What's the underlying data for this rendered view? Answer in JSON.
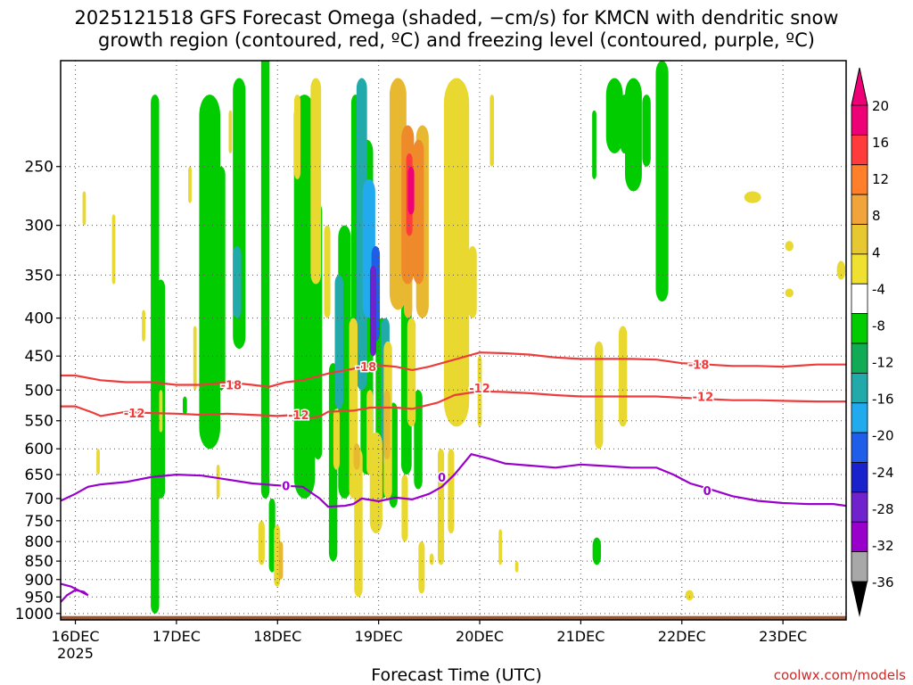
{
  "chart_data": {
    "type": "heatmap",
    "title_line1": "2025121518 GFS Forecast Omega (shaded, −cm/s) for KMCN with dendritic snow",
    "title_line2": "growth region (contoured, red, ºC) and freezing level (contoured, purple, ºC)",
    "xlabel": "Forecast Time (UTC)",
    "credit": "coolwx.com/models",
    "x_unit": "hours since 16DEC 00Z",
    "xlim": [
      -3.5,
      183
    ],
    "x_ticks": [
      {
        "label": "16DEC",
        "x": 0
      },
      {
        "label": "17DEC",
        "x": 24
      },
      {
        "label": "18DEC",
        "x": 48
      },
      {
        "label": "19DEC",
        "x": 72
      },
      {
        "label": "20DEC",
        "x": 96
      },
      {
        "label": "21DEC",
        "x": 120
      },
      {
        "label": "22DEC",
        "x": 144
      },
      {
        "label": "23DEC",
        "x": 168
      }
    ],
    "x_year_label": "2025",
    "y_unit": "hPa",
    "ylim": [
      1020,
      180
    ],
    "y_ticks": [
      250,
      300,
      350,
      400,
      450,
      500,
      550,
      600,
      650,
      700,
      750,
      800,
      850,
      900,
      950,
      1000
    ],
    "colorbar": {
      "ticks": [
        "20",
        "16",
        "12",
        "8",
        "4",
        "-4",
        "-8",
        "-12",
        "-16",
        "-20",
        "-24",
        "-28",
        "-32",
        "-36"
      ],
      "colors": [
        "#ee0077",
        "#ff3b3b",
        "#ff7f2a",
        "#f0a43a",
        "#e8c830",
        "#f0e030",
        "#ffffff",
        "#00cc00",
        "#11aa55",
        "#22aaaa",
        "#22aaee",
        "#1e5ee8",
        "#1a22cc",
        "#7022cc",
        "#9a00cc",
        "#a8a8a8"
      ]
    },
    "omega_patches": [
      {
        "x": 18.9,
        "p1": 200,
        "p2": 1000,
        "w": 2.0,
        "cls": "-8"
      },
      {
        "x": 20.3,
        "p1": 355,
        "p2": 700,
        "w": 2.0,
        "cls": "-8"
      },
      {
        "x": 26.0,
        "p1": 510,
        "p2": 540,
        "w": 1.0,
        "cls": "-8"
      },
      {
        "x": 31.9,
        "p1": 200,
        "p2": 600,
        "w": 5.0,
        "cls": "-8"
      },
      {
        "x": 34.6,
        "p1": 250,
        "p2": 500,
        "w": 2.0,
        "cls": "-8"
      },
      {
        "x": 38.9,
        "p1": 190,
        "p2": 440,
        "w": 3.0,
        "cls": "-8"
      },
      {
        "x": 45.1,
        "p1": 170,
        "p2": 700,
        "w": 2.0,
        "cls": "-8"
      },
      {
        "x": 46.7,
        "p1": 700,
        "p2": 880,
        "w": 1.5,
        "cls": "-8"
      },
      {
        "x": 54.4,
        "p1": 200,
        "p2": 700,
        "w": 5.0,
        "cls": "-8"
      },
      {
        "x": 57.6,
        "p1": 280,
        "p2": 620,
        "w": 2.0,
        "cls": "-8"
      },
      {
        "x": 61.2,
        "p1": 460,
        "p2": 850,
        "w": 2.0,
        "cls": "-8"
      },
      {
        "x": 63.9,
        "p1": 300,
        "p2": 700,
        "w": 3.0,
        "cls": "-8"
      },
      {
        "x": 66.5,
        "p1": 200,
        "p2": 440,
        "w": 2.0,
        "cls": "-8"
      },
      {
        "x": 69.2,
        "p1": 230,
        "p2": 650,
        "w": 3.0,
        "cls": "-8"
      },
      {
        "x": 72.8,
        "p1": 400,
        "p2": 700,
        "w": 3.0,
        "cls": "-8"
      },
      {
        "x": 75.5,
        "p1": 520,
        "p2": 720,
        "w": 2.0,
        "cls": "-8"
      },
      {
        "x": 78.6,
        "p1": 380,
        "p2": 650,
        "w": 2.5,
        "cls": "-8"
      },
      {
        "x": 81.4,
        "p1": 500,
        "p2": 680,
        "w": 2.0,
        "cls": "-8"
      },
      {
        "x": 123.2,
        "p1": 210,
        "p2": 260,
        "w": 1.0,
        "cls": "-8"
      },
      {
        "x": 128.0,
        "p1": 190,
        "p2": 240,
        "w": 4.0,
        "cls": "-8"
      },
      {
        "x": 130.4,
        "p1": 200,
        "p2": 240,
        "w": 2.0,
        "cls": "-8"
      },
      {
        "x": 132.5,
        "p1": 190,
        "p2": 270,
        "w": 4.0,
        "cls": "-8"
      },
      {
        "x": 135.6,
        "p1": 200,
        "p2": 250,
        "w": 2.0,
        "cls": "-8"
      },
      {
        "x": 139.3,
        "p1": 180,
        "p2": 380,
        "w": 3.0,
        "cls": "-8"
      },
      {
        "x": 123.8,
        "p1": 790,
        "p2": 860,
        "w": 2.0,
        "cls": "-8"
      },
      {
        "x": 38.4,
        "p1": 320,
        "p2": 400,
        "w": 2.0,
        "cls": "-12"
      },
      {
        "x": 62.6,
        "p1": 350,
        "p2": 530,
        "w": 2.0,
        "cls": "-12"
      },
      {
        "x": 73.6,
        "p1": 400,
        "p2": 630,
        "w": 2.0,
        "cls": "-12"
      },
      {
        "x": 68.0,
        "p1": 190,
        "p2": 500,
        "w": 2.5,
        "cls": "-12"
      },
      {
        "x": 69.7,
        "p1": 260,
        "p2": 400,
        "w": 3.0,
        "cls": "-16"
      },
      {
        "x": 71.3,
        "p1": 320,
        "p2": 430,
        "w": 2.0,
        "cls": "-20"
      },
      {
        "x": 70.7,
        "p1": 340,
        "p2": 450,
        "w": 1.5,
        "cls": "-28"
      },
      {
        "x": 2.1,
        "p1": 270,
        "p2": 300,
        "w": 0.8,
        "cls": "4"
      },
      {
        "x": 5.4,
        "p1": 600,
        "p2": 650,
        "w": 0.8,
        "cls": "4"
      },
      {
        "x": 9.1,
        "p1": 290,
        "p2": 360,
        "w": 0.8,
        "cls": "4"
      },
      {
        "x": 16.2,
        "p1": 390,
        "p2": 430,
        "w": 0.8,
        "cls": "4"
      },
      {
        "x": 20.3,
        "p1": 500,
        "p2": 570,
        "w": 0.8,
        "cls": "4"
      },
      {
        "x": 27.2,
        "p1": 250,
        "p2": 280,
        "w": 0.8,
        "cls": "4"
      },
      {
        "x": 28.4,
        "p1": 410,
        "p2": 500,
        "w": 0.8,
        "cls": "4"
      },
      {
        "x": 33.9,
        "p1": 630,
        "p2": 700,
        "w": 0.8,
        "cls": "4"
      },
      {
        "x": 36.8,
        "p1": 210,
        "p2": 240,
        "w": 0.8,
        "cls": "4"
      },
      {
        "x": 44.2,
        "p1": 750,
        "p2": 860,
        "w": 1.5,
        "cls": "4"
      },
      {
        "x": 47.9,
        "p1": 760,
        "p2": 920,
        "w": 1.5,
        "cls": "4"
      },
      {
        "x": 52.7,
        "p1": 200,
        "p2": 260,
        "w": 1.5,
        "cls": "4"
      },
      {
        "x": 57.1,
        "p1": 190,
        "p2": 360,
        "w": 2.5,
        "cls": "4"
      },
      {
        "x": 59.8,
        "p1": 300,
        "p2": 400,
        "w": 1.5,
        "cls": "4"
      },
      {
        "x": 62.0,
        "p1": 530,
        "p2": 640,
        "w": 1.5,
        "cls": "4"
      },
      {
        "x": 66.0,
        "p1": 400,
        "p2": 700,
        "w": 2.0,
        "cls": "4"
      },
      {
        "x": 67.2,
        "p1": 600,
        "p2": 950,
        "w": 2.0,
        "cls": "4"
      },
      {
        "x": 69.9,
        "p1": 500,
        "p2": 650,
        "w": 1.5,
        "cls": "4"
      },
      {
        "x": 71.4,
        "p1": 570,
        "p2": 780,
        "w": 3.0,
        "cls": "4"
      },
      {
        "x": 74.2,
        "p1": 430,
        "p2": 700,
        "w": 2.0,
        "cls": "4"
      },
      {
        "x": 76.4,
        "p1": 190,
        "p2": 250,
        "w": 2.0,
        "cls": "4"
      },
      {
        "x": 78.2,
        "p1": 650,
        "p2": 800,
        "w": 1.5,
        "cls": "4"
      },
      {
        "x": 79.8,
        "p1": 400,
        "p2": 560,
        "w": 2.0,
        "cls": "4"
      },
      {
        "x": 82.2,
        "p1": 800,
        "p2": 940,
        "w": 1.5,
        "cls": "4"
      },
      {
        "x": 84.6,
        "p1": 830,
        "p2": 860,
        "w": 1.0,
        "cls": "4"
      },
      {
        "x": 86.8,
        "p1": 600,
        "p2": 860,
        "w": 1.5,
        "cls": "4"
      },
      {
        "x": 89.2,
        "p1": 600,
        "p2": 780,
        "w": 1.5,
        "cls": "4"
      },
      {
        "x": 90.5,
        "p1": 190,
        "p2": 560,
        "w": 6.0,
        "cls": "4"
      },
      {
        "x": 94.3,
        "p1": 320,
        "p2": 400,
        "w": 2.0,
        "cls": "4"
      },
      {
        "x": 96.0,
        "p1": 450,
        "p2": 560,
        "w": 1.0,
        "cls": "4"
      },
      {
        "x": 98.9,
        "p1": 200,
        "p2": 250,
        "w": 1.0,
        "cls": "4"
      },
      {
        "x": 100.9,
        "p1": 770,
        "p2": 860,
        "w": 0.8,
        "cls": "4"
      },
      {
        "x": 104.8,
        "p1": 850,
        "p2": 880,
        "w": 0.8,
        "cls": "4"
      },
      {
        "x": 124.3,
        "p1": 430,
        "p2": 600,
        "w": 2.0,
        "cls": "4"
      },
      {
        "x": 130.0,
        "p1": 410,
        "p2": 560,
        "w": 2.0,
        "cls": "4"
      },
      {
        "x": 145.8,
        "p1": 930,
        "p2": 960,
        "w": 2.0,
        "cls": "4"
      },
      {
        "x": 160.8,
        "p1": 270,
        "p2": 280,
        "w": 4.0,
        "cls": "4"
      },
      {
        "x": 169.5,
        "p1": 315,
        "p2": 325,
        "w": 2.0,
        "cls": "4"
      },
      {
        "x": 169.5,
        "p1": 365,
        "p2": 375,
        "w": 2.0,
        "cls": "4"
      },
      {
        "x": 181.8,
        "p1": 335,
        "p2": 355,
        "w": 2.0,
        "cls": "4"
      },
      {
        "x": 76.6,
        "p1": 190,
        "p2": 390,
        "w": 4.0,
        "cls": "8"
      },
      {
        "x": 79.0,
        "p1": 250,
        "p2": 400,
        "w": 2.0,
        "cls": "8"
      },
      {
        "x": 82.4,
        "p1": 220,
        "p2": 400,
        "w": 3.0,
        "cls": "8"
      },
      {
        "x": 74.0,
        "p1": 500,
        "p2": 620,
        "w": 1.5,
        "cls": "8"
      },
      {
        "x": 66.8,
        "p1": 590,
        "p2": 640,
        "w": 1.5,
        "cls": "8"
      },
      {
        "x": 48.8,
        "p1": 800,
        "p2": 900,
        "w": 1.0,
        "cls": "8"
      },
      {
        "x": 78.9,
        "p1": 220,
        "p2": 360,
        "w": 3.0,
        "cls": "12"
      },
      {
        "x": 81.5,
        "p1": 230,
        "p2": 360,
        "w": 2.5,
        "cls": "12"
      },
      {
        "x": 79.3,
        "p1": 240,
        "p2": 310,
        "w": 1.5,
        "cls": "16"
      },
      {
        "x": 79.7,
        "p1": 250,
        "p2": 290,
        "w": 1.5,
        "cls": "20"
      }
    ],
    "dgz_contours": [
      {
        "label": "-18",
        "points": [
          [
            -3.5,
            478
          ],
          [
            0,
            478
          ],
          [
            6,
            485
          ],
          [
            12,
            488
          ],
          [
            18,
            488
          ],
          [
            24,
            492
          ],
          [
            30,
            492
          ],
          [
            36,
            488
          ],
          [
            42,
            492
          ],
          [
            46,
            495
          ],
          [
            50,
            488
          ],
          [
            54,
            485
          ],
          [
            60,
            475
          ],
          [
            66,
            468
          ],
          [
            70,
            462
          ],
          [
            76,
            465
          ],
          [
            80,
            470
          ],
          [
            84,
            465
          ],
          [
            90,
            455
          ],
          [
            96,
            445
          ],
          [
            102,
            446
          ],
          [
            108,
            448
          ],
          [
            114,
            452
          ],
          [
            120,
            454
          ],
          [
            126,
            454
          ],
          [
            132,
            454
          ],
          [
            138,
            455
          ],
          [
            144,
            460
          ],
          [
            150,
            462
          ],
          [
            156,
            464
          ],
          [
            162,
            464
          ],
          [
            168,
            465
          ],
          [
            176,
            462
          ],
          [
            183,
            462
          ]
        ],
        "labels": [
          {
            "x": 37,
            "p": 492
          },
          {
            "x": 69,
            "p": 465
          },
          {
            "x": 148,
            "p": 462
          }
        ]
      },
      {
        "label": "-12",
        "points": [
          [
            -3.5,
            526
          ],
          [
            0,
            526
          ],
          [
            4,
            536
          ],
          [
            6,
            542
          ],
          [
            12,
            535
          ],
          [
            18,
            537
          ],
          [
            24,
            538
          ],
          [
            30,
            540
          ],
          [
            36,
            538
          ],
          [
            42,
            540
          ],
          [
            48,
            542
          ],
          [
            52,
            540
          ],
          [
            54,
            546
          ],
          [
            58,
            543
          ],
          [
            60,
            535
          ],
          [
            66,
            533
          ],
          [
            70,
            528
          ],
          [
            76,
            528
          ],
          [
            80,
            530
          ],
          [
            86,
            520
          ],
          [
            90,
            508
          ],
          [
            96,
            502
          ],
          [
            102,
            503
          ],
          [
            108,
            505
          ],
          [
            114,
            508
          ],
          [
            120,
            510
          ],
          [
            126,
            510
          ],
          [
            132,
            510
          ],
          [
            138,
            510
          ],
          [
            144,
            512
          ],
          [
            150,
            514
          ],
          [
            156,
            516
          ],
          [
            162,
            516
          ],
          [
            168,
            517
          ],
          [
            176,
            518
          ],
          [
            183,
            518
          ]
        ],
        "labels": [
          {
            "x": 14,
            "p": 537
          },
          {
            "x": 53,
            "p": 540
          },
          {
            "x": 96,
            "p": 497
          },
          {
            "x": 149,
            "p": 510
          }
        ]
      }
    ],
    "freezing_contour": {
      "label": "0",
      "points": [
        [
          -3.5,
          705
        ],
        [
          0,
          690
        ],
        [
          3,
          675
        ],
        [
          6,
          670
        ],
        [
          12,
          665
        ],
        [
          18,
          655
        ],
        [
          24,
          650
        ],
        [
          30,
          652
        ],
        [
          36,
          660
        ],
        [
          42,
          668
        ],
        [
          48,
          672
        ],
        [
          54,
          675
        ],
        [
          58,
          700
        ],
        [
          60,
          718
        ],
        [
          64,
          716
        ],
        [
          66,
          712
        ],
        [
          68,
          700
        ],
        [
          72,
          706
        ],
        [
          76,
          698
        ],
        [
          80,
          702
        ],
        [
          84,
          690
        ],
        [
          87,
          675
        ],
        [
          90,
          650
        ],
        [
          94,
          610
        ],
        [
          98,
          618
        ],
        [
          102,
          628
        ],
        [
          108,
          632
        ],
        [
          114,
          636
        ],
        [
          120,
          630
        ],
        [
          126,
          633
        ],
        [
          132,
          636
        ],
        [
          138,
          636
        ],
        [
          142,
          650
        ],
        [
          146,
          668
        ],
        [
          150,
          678
        ],
        [
          156,
          695
        ],
        [
          162,
          705
        ],
        [
          168,
          710
        ],
        [
          174,
          712
        ],
        [
          180,
          712
        ],
        [
          183,
          716
        ]
      ],
      "labels": [
        {
          "x": 50,
          "p": 673
        },
        {
          "x": 87,
          "p": 655
        },
        {
          "x": 150,
          "p": 683
        }
      ]
    },
    "extra_freezing_loop": [
      [
        -3.5,
        965
      ],
      [
        -2,
        945
      ],
      [
        0,
        930
      ],
      [
        2,
        935
      ],
      [
        3,
        945
      ],
      [
        -1,
        920
      ],
      [
        -3.5,
        912
      ]
    ],
    "terrain_color": "#a0522d",
    "terrain_top_p": 1008
  }
}
